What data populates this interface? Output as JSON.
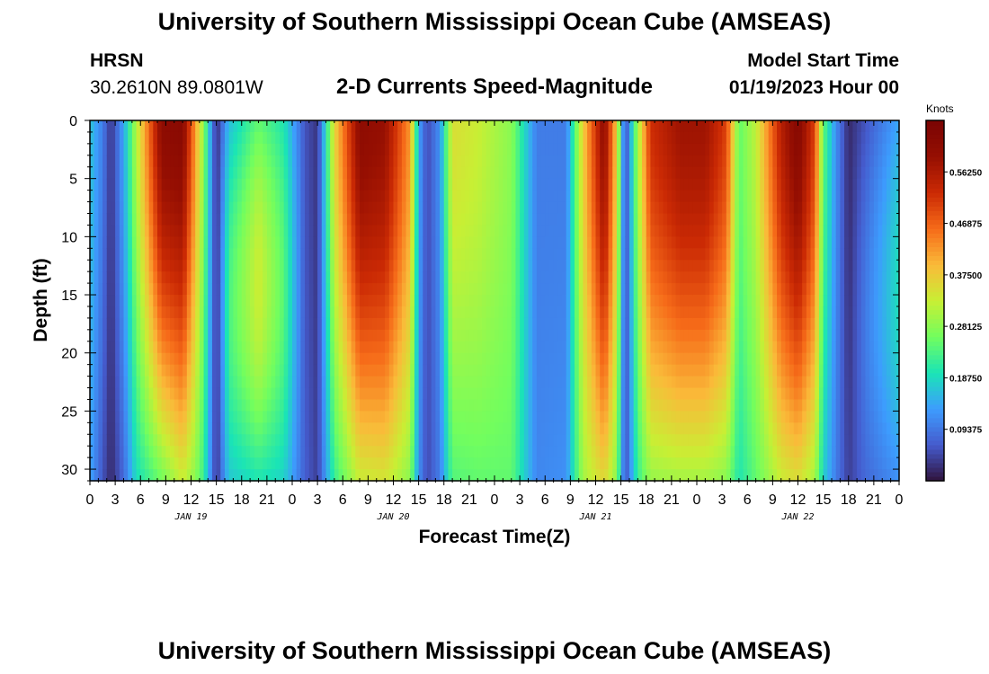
{
  "header": {
    "title": "University of Southern Mississippi Ocean Cube (AMSEAS)",
    "station": "HRSN",
    "coords": "30.2610N  89.0801W",
    "subtitle": "2-D Currents Speed-Magnitude",
    "model_label": "Model Start Time",
    "model_time": "01/19/2023 Hour 00"
  },
  "footer": {
    "title_repeat": "University of Southern Mississippi Ocean Cube (AMSEAS)"
  },
  "chart_data": {
    "type": "heatmap",
    "title": "2-D Currents Speed-Magnitude",
    "xlabel": "Forecast Time(Z)",
    "ylabel": "Depth (ft)",
    "x_ticks": [
      "0",
      "3",
      "6",
      "9",
      "12",
      "15",
      "18",
      "21",
      "0",
      "3",
      "6",
      "9",
      "12",
      "15",
      "18",
      "21",
      "0",
      "3",
      "6",
      "9",
      "12",
      "15",
      "18",
      "21",
      "0",
      "3",
      "6",
      "9",
      "12",
      "15",
      "18",
      "21",
      "0"
    ],
    "x_hours_range": [
      0,
      96
    ],
    "day_labels": [
      {
        "label": "JAN 19",
        "hour": 12
      },
      {
        "label": "JAN 20",
        "hour": 36
      },
      {
        "label": "JAN 21",
        "hour": 60
      },
      {
        "label": "JAN 22",
        "hour": 84
      }
    ],
    "y_ticks": [
      0,
      5,
      10,
      15,
      20,
      25,
      30
    ],
    "ylim": [
      0,
      31
    ],
    "colorbar": {
      "title": "Knots",
      "range": [
        0,
        0.65625
      ],
      "tick_values": [
        0.09375,
        0.1875,
        0.28125,
        0.375,
        0.46875,
        0.5625
      ],
      "tick_labels": [
        "0.09375",
        "0.18750",
        "0.28125",
        "0.37500",
        "0.46875",
        "0.56250"
      ]
    },
    "speed_profile": {
      "hours": [
        0,
        1.5,
        2.5,
        4,
        5.5,
        8.5,
        11,
        12.5,
        13.5,
        15,
        16.5,
        20,
        23,
        25.5,
        27,
        29,
        32,
        35,
        38,
        39,
        40,
        41.5,
        43,
        46,
        50,
        53,
        56.5,
        58.5,
        61,
        62.5,
        63.5,
        65,
        66.5,
        70,
        73,
        75.5,
        77,
        79,
        82,
        84,
        86,
        87,
        88.5,
        90,
        92,
        96
      ],
      "surface_knots": [
        0.17,
        0.1,
        0.03,
        0.14,
        0.31,
        0.61,
        0.62,
        0.42,
        0.28,
        0.02,
        0.16,
        0.25,
        0.2,
        0.06,
        0.03,
        0.36,
        0.61,
        0.59,
        0.42,
        0.14,
        0.05,
        0.12,
        0.35,
        0.33,
        0.28,
        0.1,
        0.1,
        0.37,
        0.61,
        0.37,
        0.04,
        0.3,
        0.52,
        0.58,
        0.58,
        0.5,
        0.25,
        0.32,
        0.55,
        0.63,
        0.5,
        0.25,
        0.12,
        0.02,
        0.06,
        0.14
      ],
      "bottom_knots": [
        0.14,
        0.06,
        0.02,
        0.08,
        0.19,
        0.26,
        0.33,
        0.28,
        0.22,
        0.03,
        0.17,
        0.2,
        0.18,
        0.07,
        0.04,
        0.22,
        0.33,
        0.34,
        0.28,
        0.12,
        0.05,
        0.1,
        0.24,
        0.25,
        0.25,
        0.11,
        0.12,
        0.3,
        0.36,
        0.28,
        0.05,
        0.22,
        0.29,
        0.3,
        0.3,
        0.28,
        0.2,
        0.25,
        0.33,
        0.35,
        0.3,
        0.18,
        0.1,
        0.04,
        0.08,
        0.12
      ],
      "mid_peak_knots": [
        0,
        0,
        0,
        0,
        0,
        0,
        0,
        0,
        0,
        0,
        0.07,
        0.1,
        0.05,
        0,
        0,
        0,
        0,
        0,
        0,
        0,
        0,
        0,
        0,
        0,
        0,
        0,
        0,
        0,
        0,
        0,
        0,
        0,
        0,
        0,
        0,
        0,
        0,
        0,
        0,
        0,
        0,
        0,
        0,
        0,
        0.03,
        0.06
      ]
    }
  }
}
